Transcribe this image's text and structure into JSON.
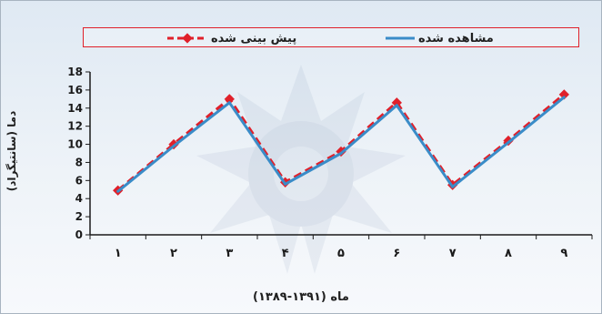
{
  "chart_data": {
    "type": "line",
    "title": "",
    "xlabel": "ماه (۱۳۹۱-۱۳۸۹)",
    "ylabel": "دما (سانتیگراد)",
    "categories": [
      "۱",
      "۲",
      "۳",
      "۴",
      "۵",
      "۶",
      "۷",
      "۸",
      "۹"
    ],
    "ylim": [
      0,
      18
    ],
    "yticks": [
      0,
      2,
      4,
      6,
      8,
      10,
      12,
      14,
      16,
      18
    ],
    "grid": false,
    "legend_position": "top",
    "series": [
      {
        "name": "مشاهده شده",
        "values": [
          4.8,
          9.8,
          14.6,
          5.6,
          9.0,
          14.3,
          5.3,
          10.2,
          15.2
        ],
        "color": "#3a8cc8",
        "style": "solid"
      },
      {
        "name": "پیش بینی شده",
        "values": [
          4.9,
          10.0,
          15.0,
          5.8,
          9.2,
          14.6,
          5.5,
          10.4,
          15.5
        ],
        "color": "#e0202a",
        "style": "dashed-diamond"
      }
    ]
  }
}
